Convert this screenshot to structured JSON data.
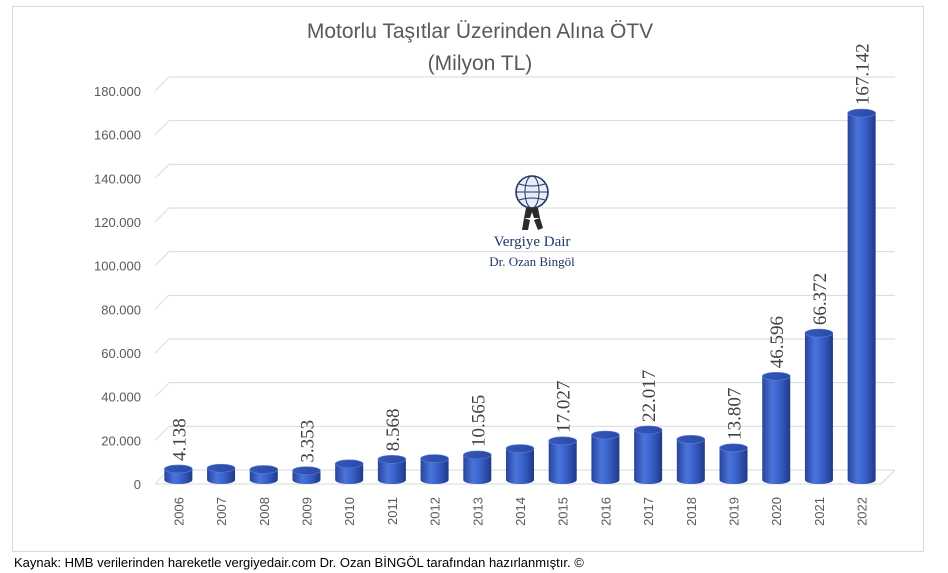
{
  "chart_data": {
    "type": "bar",
    "title": "Motorlu Taşıtlar Üzerinden Alına ÖTV",
    "subtitle": "(Milyon TL)",
    "categories": [
      "2006",
      "2007",
      "2008",
      "2009",
      "2010",
      "2011",
      "2012",
      "2013",
      "2014",
      "2015",
      "2016",
      "2017",
      "2018",
      "2019",
      "2020",
      "2021",
      "2022"
    ],
    "values": [
      4138,
      4500,
      3900,
      3353,
      6500,
      8568,
      8900,
      10565,
      13500,
      17027,
      19700,
      22017,
      17700,
      13807,
      46596,
      66372,
      167142
    ],
    "data_labels": [
      "4.138",
      "",
      "",
      "3.353",
      "",
      "8.568",
      "",
      "10.565",
      "",
      "17.027",
      "",
      "22.017",
      "",
      "13.807",
      "46.596",
      "66.372",
      "167.142"
    ],
    "ylim": [
      0,
      180000
    ],
    "yticks": [
      0,
      20000,
      40000,
      60000,
      80000,
      100000,
      120000,
      140000,
      160000,
      180000
    ],
    "ytick_labels": [
      "0",
      "20.000",
      "40.000",
      "60.000",
      "80.000",
      "100.000",
      "120.000",
      "140.000",
      "160.000",
      "180.000"
    ],
    "grid": true,
    "bar_color": "#3a5fcd",
    "style": "3d-cylinder"
  },
  "logo": {
    "name": "Vergiye Dair",
    "author": "Dr. Ozan Bingöl",
    "icon": "atlas-globe-icon"
  },
  "source_note": "Kaynak: HMB verilerinden hareketle vergiyedair.com Dr. Ozan BİNGÖL tarafından hazırlanmıştır. ©"
}
